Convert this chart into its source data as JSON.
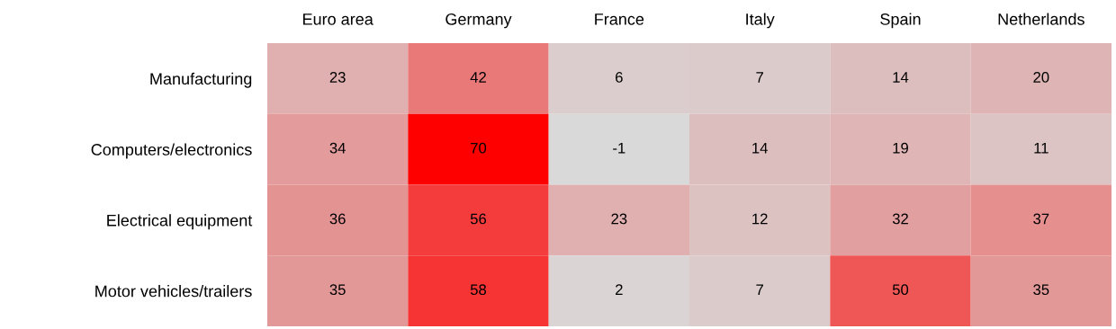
{
  "chart_data": {
    "type": "heatmap",
    "categories": [
      "Euro area",
      "Germany",
      "France",
      "Italy",
      "Spain",
      "Netherlands"
    ],
    "y_categories": [
      "Manufacturing",
      "Computers/electronics",
      "Electrical equipment",
      "Motor vehicles/trailers"
    ],
    "cells": [
      [
        23,
        42,
        6,
        7,
        14,
        20
      ],
      [
        34,
        70,
        -1,
        14,
        19,
        11
      ],
      [
        36,
        56,
        23,
        12,
        32,
        37
      ],
      [
        35,
        58,
        2,
        7,
        50,
        35
      ]
    ],
    "data_labels": true
  }
}
